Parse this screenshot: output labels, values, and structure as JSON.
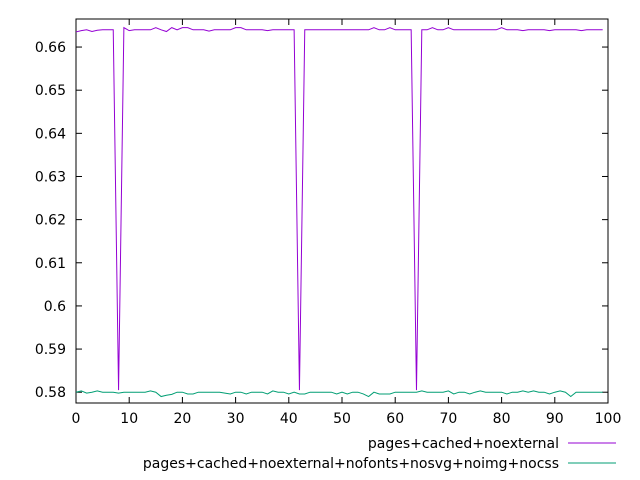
{
  "chart_data": {
    "type": "line",
    "title": "",
    "xlabel": "",
    "ylabel": "",
    "xlim": [
      0,
      100
    ],
    "ylim": [
      0.5775,
      0.6665
    ],
    "x_ticks": [
      "0",
      "10",
      "20",
      "30",
      "40",
      "50",
      "60",
      "70",
      "80",
      "90",
      "100"
    ],
    "y_ticks": [
      "0.58",
      "0.59",
      "0.6",
      "0.61",
      "0.62",
      "0.63",
      "0.64",
      "0.65",
      "0.66"
    ],
    "grid": false,
    "legend_position": "bottom-right",
    "x": [
      0,
      1,
      2,
      3,
      4,
      5,
      6,
      7,
      8,
      9,
      10,
      11,
      12,
      13,
      14,
      15,
      16,
      17,
      18,
      19,
      20,
      21,
      22,
      23,
      24,
      25,
      26,
      27,
      28,
      29,
      30,
      31,
      32,
      33,
      34,
      35,
      36,
      37,
      38,
      39,
      40,
      41,
      42,
      43,
      44,
      45,
      46,
      47,
      48,
      49,
      50,
      51,
      52,
      53,
      54,
      55,
      56,
      57,
      58,
      59,
      60,
      61,
      62,
      63,
      64,
      65,
      66,
      67,
      68,
      69,
      70,
      71,
      72,
      73,
      74,
      75,
      76,
      77,
      78,
      79,
      80,
      81,
      82,
      83,
      84,
      85,
      86,
      87,
      88,
      89,
      90,
      91,
      92,
      93,
      94,
      95,
      96,
      97,
      98,
      99
    ],
    "series": [
      {
        "name": "pages+cached+noexternal",
        "color": "#9400d3",
        "values": [
          0.6635,
          0.6638,
          0.664,
          0.6636,
          0.6639,
          0.664,
          0.664,
          0.664,
          0.5805,
          0.6645,
          0.6638,
          0.664,
          0.664,
          0.664,
          0.664,
          0.6645,
          0.664,
          0.6636,
          0.6645,
          0.664,
          0.6645,
          0.6645,
          0.664,
          0.664,
          0.664,
          0.6637,
          0.664,
          0.664,
          0.664,
          0.664,
          0.6645,
          0.6645,
          0.664,
          0.664,
          0.664,
          0.664,
          0.6638,
          0.664,
          0.664,
          0.664,
          0.664,
          0.664,
          0.5805,
          0.664,
          0.664,
          0.664,
          0.664,
          0.664,
          0.664,
          0.664,
          0.664,
          0.664,
          0.664,
          0.664,
          0.664,
          0.664,
          0.6645,
          0.664,
          0.664,
          0.6645,
          0.664,
          0.664,
          0.664,
          0.664,
          0.5805,
          0.664,
          0.664,
          0.6645,
          0.664,
          0.664,
          0.6645,
          0.664,
          0.664,
          0.664,
          0.664,
          0.664,
          0.664,
          0.664,
          0.664,
          0.664,
          0.6645,
          0.664,
          0.664,
          0.664,
          0.6638,
          0.664,
          0.664,
          0.664,
          0.664,
          0.6638,
          0.664,
          0.664,
          0.664,
          0.664,
          0.664,
          0.6638,
          0.664,
          0.664,
          0.664,
          0.664
        ]
      },
      {
        "name": "pages+cached+noexternal+nofonts+nosvg+noimg+nocss",
        "color": "#009e73",
        "values": [
          0.58,
          0.5803,
          0.5798,
          0.58,
          0.5803,
          0.58,
          0.58,
          0.58,
          0.5798,
          0.58,
          0.58,
          0.58,
          0.58,
          0.58,
          0.5803,
          0.58,
          0.579,
          0.5793,
          0.5795,
          0.58,
          0.58,
          0.5796,
          0.5796,
          0.58,
          0.58,
          0.58,
          0.58,
          0.58,
          0.5798,
          0.5796,
          0.58,
          0.58,
          0.5796,
          0.58,
          0.58,
          0.58,
          0.5796,
          0.5803,
          0.58,
          0.58,
          0.5796,
          0.58,
          0.5796,
          0.5796,
          0.58,
          0.58,
          0.58,
          0.58,
          0.58,
          0.5796,
          0.58,
          0.5796,
          0.58,
          0.58,
          0.5796,
          0.579,
          0.58,
          0.5796,
          0.5796,
          0.5796,
          0.58,
          0.58,
          0.58,
          0.58,
          0.58,
          0.5803,
          0.58,
          0.58,
          0.58,
          0.58,
          0.5803,
          0.5796,
          0.58,
          0.58,
          0.5796,
          0.58,
          0.5803,
          0.58,
          0.58,
          0.58,
          0.58,
          0.5796,
          0.58,
          0.58,
          0.5803,
          0.58,
          0.5803,
          0.58,
          0.58,
          0.5796,
          0.58,
          0.5803,
          0.58,
          0.579,
          0.58,
          0.58,
          0.58,
          0.58,
          0.58,
          0.58
        ]
      }
    ]
  }
}
